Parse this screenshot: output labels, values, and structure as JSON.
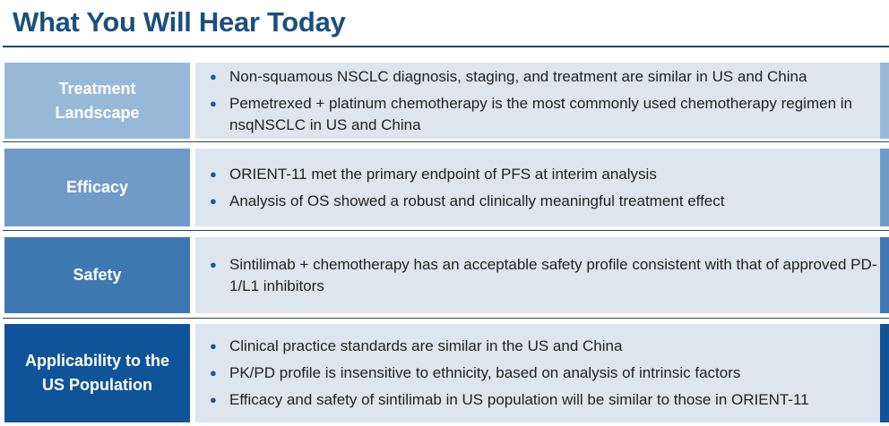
{
  "title": "What You Will Hear Today",
  "rows": [
    {
      "label": "Treatment Landscape",
      "color": "#98b8d8",
      "items": [
        "Non-squamous NSCLC diagnosis, staging, and treatment are similar in US and China",
        "Pemetrexed + platinum chemotherapy is the most commonly used chemotherapy regimen in nsqNSCLC in US and China"
      ]
    },
    {
      "label": "Efficacy",
      "color": "#709bc9",
      "items": [
        "ORIENT-11 met the primary endpoint of PFS at interim analysis",
        "Analysis of OS showed a robust and clinically meaningful treatment effect"
      ]
    },
    {
      "label": "Safety",
      "color": "#3e78b3",
      "items": [
        "Sintilimab + chemotherapy has an acceptable safety profile consistent with that of approved PD-1/L1 inhibitors"
      ]
    },
    {
      "label": "Applicability to the US Population",
      "color": "#0f5499",
      "items": [
        "Clinical practice standards are similar in the US and China",
        "PK/PD profile is insensitive to ethnicity, based on analysis of intrinsic factors",
        "Efficacy and safety of sintilimab in US population will be similar to those in ORIENT-11"
      ]
    }
  ]
}
